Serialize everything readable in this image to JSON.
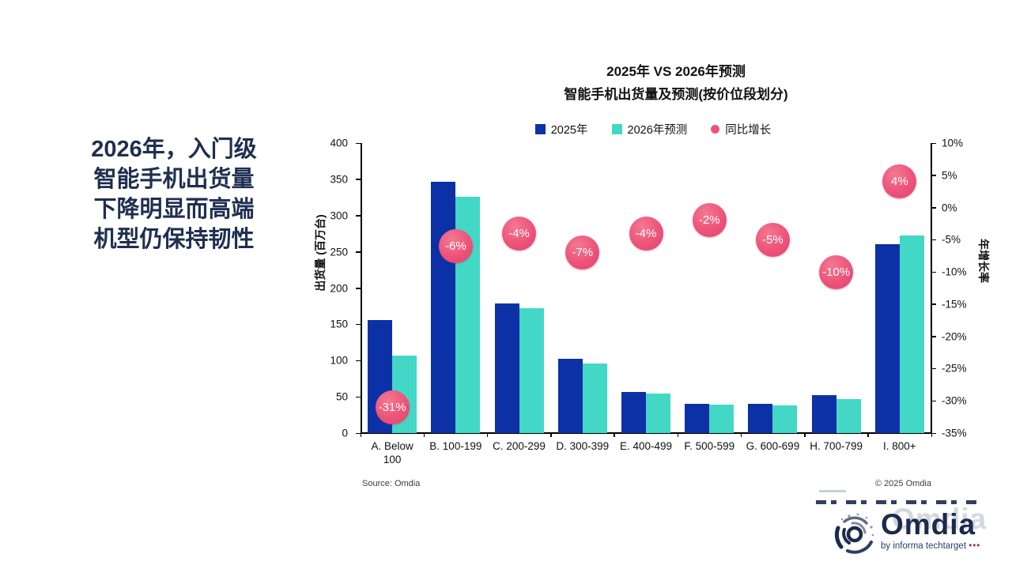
{
  "headline": {
    "text": "2026年，入门级\n智能手机出货量\n下降明显而高端\n机型仍保持韧性"
  },
  "chart_data": {
    "type": "bar",
    "title": "2025年 VS 2026年预测\n智能手机出货量及预测(按价位段划分)",
    "categories": [
      "A. Below 100",
      "B. 100-199",
      "C. 200-299",
      "D. 300-399",
      "E. 400-499",
      "F. 500-599",
      "G. 600-699",
      "H. 700-799",
      "I. 800+"
    ],
    "series": [
      {
        "name": "2025年",
        "color": "#0C31A6",
        "values": [
          156,
          347,
          179,
          103,
          57,
          40,
          40,
          52,
          261
        ]
      },
      {
        "name": "2026年预测",
        "color": "#43D7C6",
        "values": [
          107,
          326,
          172,
          96,
          55,
          39,
          38,
          47,
          272
        ]
      }
    ],
    "growth_series": {
      "name": "同比增长",
      "color": "#ED537A",
      "values_pct": [
        -31,
        -6,
        -4,
        -7,
        -4,
        -2,
        -5,
        -10,
        4
      ],
      "labels": [
        "-31%",
        "-6%",
        "-4%",
        "-7%",
        "-4%",
        "-2%",
        "-5%",
        "-10%",
        "4%"
      ]
    },
    "left_axis": {
      "label": "出货量 (百万台)",
      "min": 0,
      "max": 400,
      "step": 50,
      "tick_labels": [
        "0",
        "50",
        "100",
        "150",
        "200",
        "250",
        "300",
        "350",
        "400"
      ]
    },
    "right_axis": {
      "label": "年增长率",
      "min": -35,
      "max": 10,
      "step": 5,
      "tick_labels": [
        "10%",
        "5%",
        "0%",
        "-5%",
        "-10%",
        "-15%",
        "-20%",
        "-25%",
        "-30%",
        "-35%"
      ]
    },
    "legend_position": "top",
    "grid": false
  },
  "footer": {
    "source": "Source: Omdia",
    "copyright": "© 2025 Omdia",
    "logo": {
      "name": "Omdia",
      "tagline": "by informa techtarget ",
      "dots": "•••"
    }
  }
}
